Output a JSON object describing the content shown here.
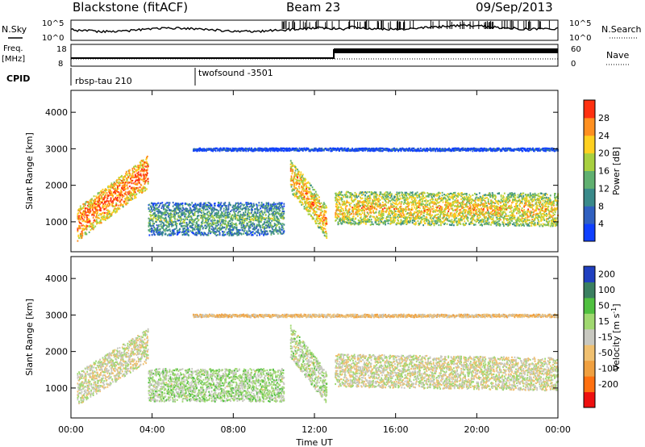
{
  "header": {
    "radar": "Blackstone (fitACF)",
    "beam": "Beam 23",
    "date": "09/Sep/2013"
  },
  "status_panels": {
    "noise_left_label": "N.Sky",
    "noise_right_label": "N.Search",
    "noise_ticks_left": [
      "10^5",
      "10^0"
    ],
    "noise_ticks_right": [
      "10^5",
      "10^0"
    ],
    "freq_label_top": "Freq.",
    "freq_label_unit": "[MHz]",
    "freq_ticks": [
      "18",
      "8"
    ],
    "nave_label": "Nave",
    "nave_ticks": [
      "60",
      "0"
    ],
    "cpid_label": "CPID",
    "cpid_segments": [
      {
        "name": "rbsp-tau 210",
        "start_hour": 0
      },
      {
        "name": "twofsound -3501",
        "start_hour": 6
      }
    ]
  },
  "chart_data": [
    {
      "type": "heatmap",
      "title": "",
      "xlabel": "Time UT",
      "ylabel": "Slant Range [km]",
      "x_ticks": [
        "00:00",
        "04:00",
        "08:00",
        "12:00",
        "16:00",
        "20:00",
        "00:00"
      ],
      "x_range_hours": [
        0,
        24
      ],
      "y_ticks": [
        1000,
        2000,
        3000,
        4000
      ],
      "ylim": [
        180,
        4600
      ],
      "colorbar_label": "Power [dB]",
      "colorbar_ticks": [
        4,
        8,
        12,
        16,
        20,
        24,
        28
      ],
      "colorbar_range": [
        0,
        30
      ],
      "colorbar_colors": [
        "#1040ff",
        "#3060c0",
        "#3a8a8a",
        "#60b070",
        "#a8d040",
        "#ffd020",
        "#ff9020",
        "#ff3010"
      ],
      "echo_bands": [
        {
          "name": "early rising band",
          "start_hour": 0.3,
          "end_hour": 3.8,
          "start_range_km": 950,
          "end_range_km": 2400,
          "level": 27
        },
        {
          "name": "scatter near 1100 km",
          "start_hour": 3.8,
          "end_hour": 10.5,
          "start_range_km": 1100,
          "end_range_km": 1100,
          "level": 14
        },
        {
          "name": "descending streak",
          "start_hour": 10.8,
          "end_hour": 12.6,
          "start_range_km": 2300,
          "end_range_km": 1000,
          "level": 24
        },
        {
          "name": "late band",
          "start_hour": 13,
          "end_hour": 24,
          "start_range_km": 1400,
          "end_range_km": 1350,
          "level": 22
        },
        {
          "name": "ground scatter line",
          "start_hour": 6,
          "end_hour": 24,
          "start_range_km": 3000,
          "end_range_km": 3000,
          "level": 6
        }
      ]
    },
    {
      "type": "heatmap",
      "title": "",
      "xlabel": "Time UT",
      "ylabel": "Slant Range [km]",
      "x_ticks": [
        "00:00",
        "04:00",
        "08:00",
        "12:00",
        "16:00",
        "20:00",
        "00:00"
      ],
      "x_range_hours": [
        0,
        24
      ],
      "y_ticks": [
        1000,
        2000,
        3000,
        4000
      ],
      "ylim": [
        180,
        4600
      ],
      "colorbar_label": "Velocity [m s^-1]",
      "colorbar_ticks": [
        200,
        100,
        50,
        15,
        -15,
        -50,
        -100,
        -200
      ],
      "colorbar_range": [
        -250,
        250
      ],
      "colorbar_colors": [
        "#2040c0",
        "#3a7f60",
        "#50c040",
        "#a0d870",
        "#c8c8c0",
        "#f0c070",
        "#f0a040",
        "#ff7010",
        "#ee1010"
      ],
      "echo_bands": [
        {
          "name": "ground scatter band",
          "start_hour": 0.3,
          "end_hour": 3.8,
          "start_range_km": 1000,
          "end_range_km": 2200,
          "level": 0
        },
        {
          "name": "mixed band",
          "start_hour": 3.8,
          "end_hour": 10.5,
          "start_range_km": 1100,
          "end_range_km": 1100,
          "level": 40
        },
        {
          "name": "green streak",
          "start_hour": 10.8,
          "end_hour": 12.6,
          "start_range_km": 2300,
          "end_range_km": 1000,
          "level": 30
        },
        {
          "name": "late mixed band",
          "start_hour": 13,
          "end_hour": 24,
          "start_range_km": 1500,
          "end_range_km": 1400,
          "level": 0
        },
        {
          "name": "3000 km line",
          "start_hour": 6,
          "end_hour": 24,
          "start_range_km": 3000,
          "end_range_km": 3000,
          "level": -60
        }
      ]
    }
  ]
}
